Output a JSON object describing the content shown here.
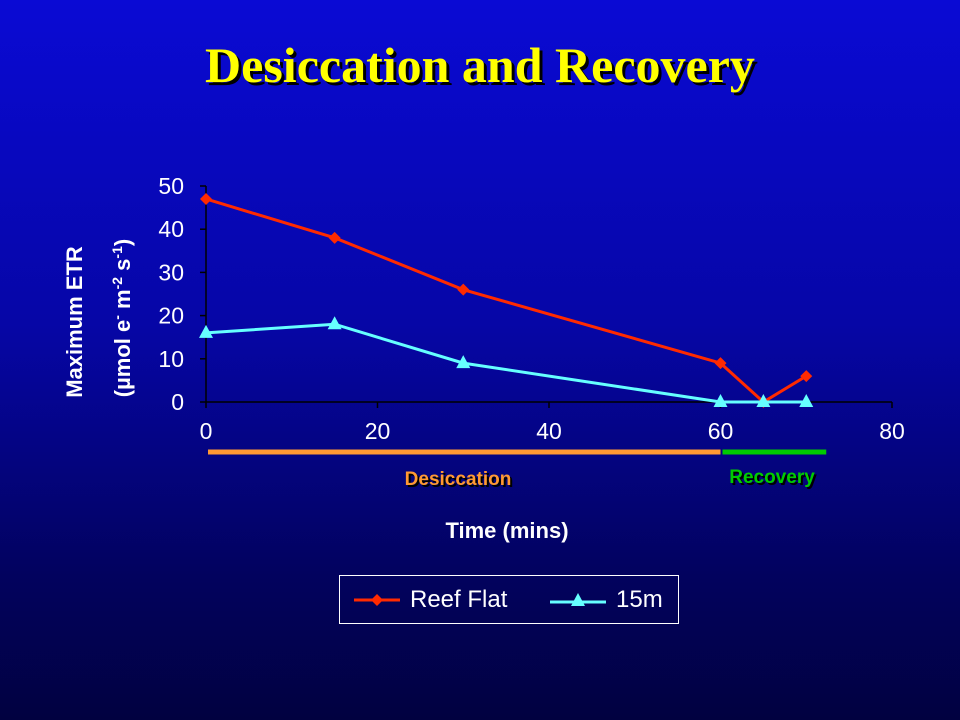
{
  "title": "Desiccation and Recovery",
  "chart_data": {
    "type": "line",
    "xlabel": "Time (mins)",
    "ylabel_line1": "Maximum ETR",
    "ylabel_line2_parts": [
      "(µmol e",
      "-",
      " m",
      "-2",
      " s",
      "-1",
      ")"
    ],
    "xlim": [
      0,
      80
    ],
    "ylim": [
      0,
      50
    ],
    "xticks": [
      0,
      20,
      40,
      60,
      80
    ],
    "yticks": [
      0,
      10,
      20,
      30,
      40,
      50
    ],
    "series": [
      {
        "name": "Reef Flat",
        "color": "#ff2a00",
        "marker": "diamond",
        "x": [
          0,
          15,
          30,
          60,
          65,
          70
        ],
        "y": [
          47,
          38,
          26,
          9,
          0,
          6
        ]
      },
      {
        "name": "15m",
        "color": "#66ffff",
        "marker": "triangle",
        "x": [
          0,
          15,
          30,
          60,
          65,
          70
        ],
        "y": [
          16,
          18,
          9,
          0,
          0,
          0
        ]
      }
    ],
    "phases": [
      {
        "label": "Desiccation",
        "x_start": 0,
        "x_end": 60,
        "color": "#ff9933"
      },
      {
        "label": "Recovery",
        "x_start": 60,
        "x_end": 70,
        "color": "#00cc00"
      }
    ],
    "legend": {
      "position": "bottom"
    },
    "grid": false
  }
}
